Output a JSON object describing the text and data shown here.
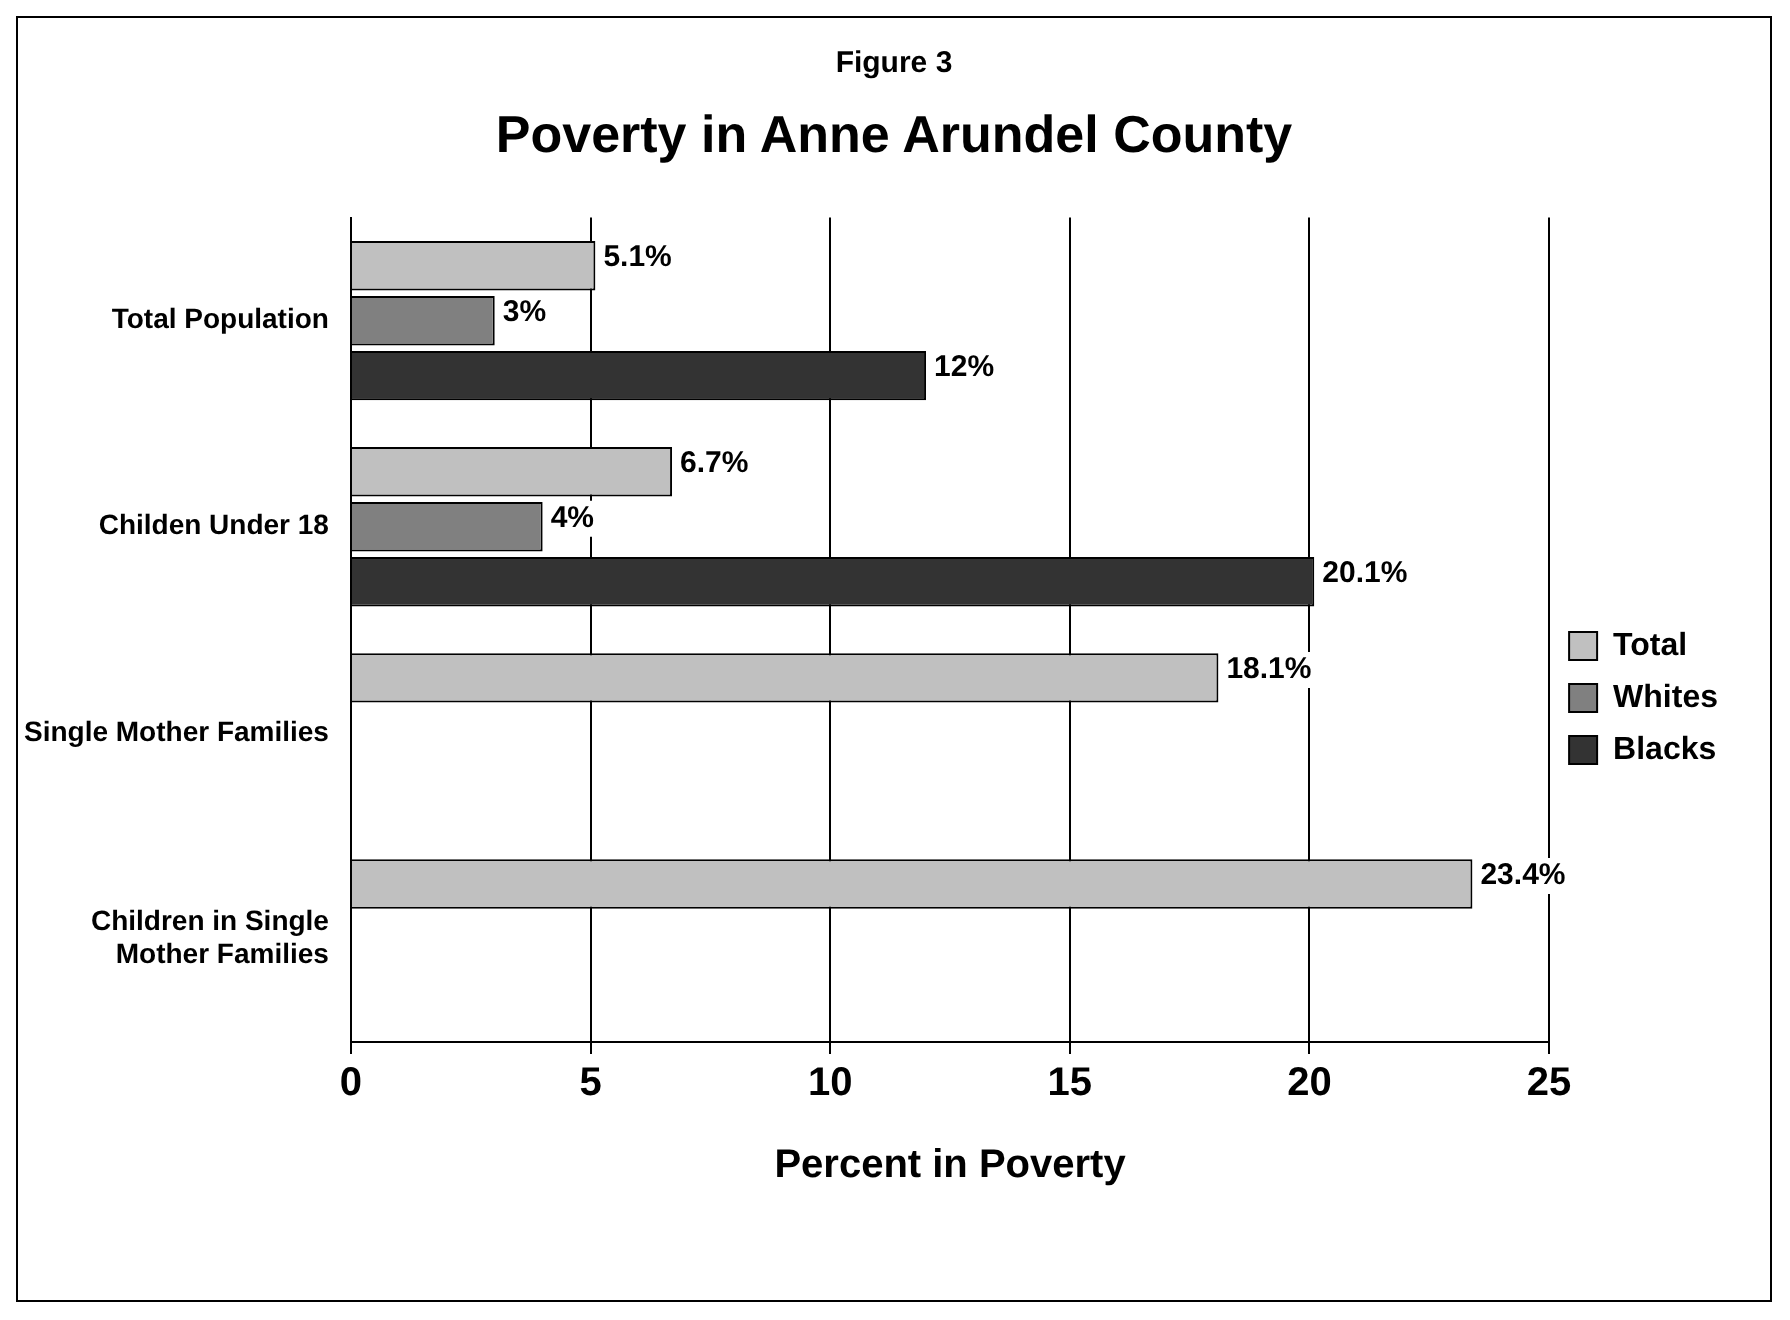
{
  "chart_data": {
    "type": "bar",
    "orientation": "horizontal",
    "subtitle": "Figure 3",
    "title": "Poverty in Anne Arundel County",
    "xlabel": "Percent in Poverty",
    "categories": [
      "Total Population",
      "Childen Under 18",
      "Single Mother Families",
      "Children in Single Mother Families"
    ],
    "series": [
      {
        "name": "Total",
        "color": "#c0c0c0",
        "values": [
          5.1,
          6.7,
          18.1,
          23.4
        ],
        "value_labels": [
          "5.1%",
          "6.7%",
          "18.1%",
          "23.4%"
        ]
      },
      {
        "name": "Whites",
        "color": "#808080",
        "values": [
          3,
          4,
          null,
          null
        ],
        "value_labels": [
          "3%",
          "4%",
          null,
          null
        ]
      },
      {
        "name": "Blacks",
        "color": "#333333",
        "values": [
          12,
          20.1,
          null,
          null
        ],
        "value_labels": [
          "12%",
          "20.1%",
          null,
          null
        ]
      }
    ],
    "xlim": [
      0,
      25
    ],
    "xticks": [
      0,
      5,
      10,
      15,
      20,
      25
    ],
    "grid": "x",
    "legend": "right"
  }
}
